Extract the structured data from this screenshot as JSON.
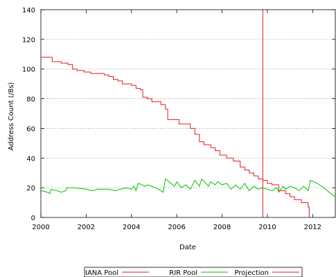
{
  "chart_data": {
    "type": "line",
    "title": "",
    "xlabel": "Date",
    "ylabel": "Address Count (/8s)",
    "xlim": [
      2000,
      2013.0
    ],
    "ylim": [
      0,
      140
    ],
    "x_ticks": [
      2000,
      2002,
      2004,
      2006,
      2008,
      2010,
      2012
    ],
    "y_ticks": [
      0,
      20,
      40,
      60,
      80,
      100,
      120,
      140
    ],
    "grid": true,
    "legend_position": "bottom-center",
    "vertical_marker": {
      "x": 2009.8,
      "color": "#e41a1c"
    },
    "series": [
      {
        "name": "IANA Pool",
        "color": "#e41a1c",
        "step": true,
        "points": [
          [
            2000.0,
            108
          ],
          [
            2000.5,
            105
          ],
          [
            2000.9,
            104
          ],
          [
            2001.2,
            103
          ],
          [
            2001.4,
            100
          ],
          [
            2001.6,
            99
          ],
          [
            2001.9,
            98
          ],
          [
            2002.2,
            97
          ],
          [
            2002.8,
            96
          ],
          [
            2003.0,
            95
          ],
          [
            2003.2,
            93
          ],
          [
            2003.4,
            92
          ],
          [
            2003.6,
            90
          ],
          [
            2004.0,
            89
          ],
          [
            2004.2,
            87
          ],
          [
            2004.4,
            86
          ],
          [
            2004.5,
            81
          ],
          [
            2004.7,
            80
          ],
          [
            2004.9,
            78
          ],
          [
            2005.3,
            76
          ],
          [
            2005.5,
            73
          ],
          [
            2005.6,
            66
          ],
          [
            2006.0,
            66
          ],
          [
            2006.1,
            63
          ],
          [
            2006.6,
            60
          ],
          [
            2006.8,
            56
          ],
          [
            2007.0,
            51
          ],
          [
            2007.2,
            49
          ],
          [
            2007.5,
            47
          ],
          [
            2007.7,
            45
          ],
          [
            2007.9,
            42
          ],
          [
            2008.2,
            40
          ],
          [
            2008.5,
            38
          ],
          [
            2008.8,
            34
          ],
          [
            2009.0,
            32
          ],
          [
            2009.2,
            30
          ],
          [
            2009.4,
            28
          ],
          [
            2009.6,
            26
          ],
          [
            2009.8,
            25
          ],
          [
            2010.0,
            23
          ],
          [
            2010.2,
            22
          ],
          [
            2010.5,
            18
          ],
          [
            2010.8,
            16
          ],
          [
            2011.0,
            14
          ],
          [
            2011.2,
            12
          ],
          [
            2011.5,
            10
          ],
          [
            2011.8,
            7
          ],
          [
            2011.85,
            0
          ]
        ]
      },
      {
        "name": "RIR Pool",
        "color": "#00c000",
        "step": false,
        "points": [
          [
            2000.0,
            18
          ],
          [
            2000.3,
            17
          ],
          [
            2000.4,
            16
          ],
          [
            2000.45,
            19
          ],
          [
            2000.7,
            18
          ],
          [
            2000.9,
            17
          ],
          [
            2001.1,
            18
          ],
          [
            2001.15,
            20
          ],
          [
            2001.5,
            20
          ],
          [
            2002.0,
            19
          ],
          [
            2002.3,
            18
          ],
          [
            2002.5,
            19
          ],
          [
            2003.0,
            19
          ],
          [
            2003.3,
            18
          ],
          [
            2003.5,
            19
          ],
          [
            2003.8,
            20
          ],
          [
            2004.0,
            19
          ],
          [
            2004.1,
            21
          ],
          [
            2004.2,
            18
          ],
          [
            2004.3,
            23
          ],
          [
            2004.6,
            21
          ],
          [
            2004.7,
            22
          ],
          [
            2004.9,
            21
          ],
          [
            2005.2,
            19
          ],
          [
            2005.4,
            17
          ],
          [
            2005.5,
            26
          ],
          [
            2005.9,
            21
          ],
          [
            2006.0,
            24
          ],
          [
            2006.2,
            20
          ],
          [
            2006.4,
            22
          ],
          [
            2006.6,
            19
          ],
          [
            2006.8,
            25
          ],
          [
            2007.0,
            21
          ],
          [
            2007.1,
            26
          ],
          [
            2007.4,
            21
          ],
          [
            2007.5,
            24
          ],
          [
            2007.7,
            22
          ],
          [
            2007.8,
            24
          ],
          [
            2008.0,
            22
          ],
          [
            2008.2,
            23
          ],
          [
            2008.4,
            19
          ],
          [
            2008.6,
            22
          ],
          [
            2008.8,
            19
          ],
          [
            2009.0,
            23
          ],
          [
            2009.2,
            18
          ],
          [
            2009.4,
            21
          ],
          [
            2009.6,
            19
          ],
          [
            2009.8,
            20
          ],
          [
            2010.0,
            19
          ],
          [
            2010.2,
            18
          ],
          [
            2010.4,
            20
          ],
          [
            2010.5,
            17
          ],
          [
            2010.7,
            21
          ],
          [
            2010.8,
            19
          ],
          [
            2011.0,
            21
          ],
          [
            2011.2,
            20
          ],
          [
            2011.4,
            18
          ],
          [
            2011.6,
            21
          ],
          [
            2011.8,
            18
          ],
          [
            2011.9,
            25
          ],
          [
            2012.2,
            23
          ],
          [
            2012.5,
            20
          ],
          [
            2012.8,
            16
          ],
          [
            2013.0,
            14
          ]
        ]
      },
      {
        "name": "Projection",
        "color": "#e41a1c",
        "step": false,
        "points": []
      }
    ]
  }
}
